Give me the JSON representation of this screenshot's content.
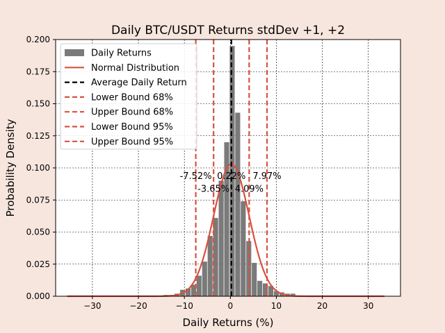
{
  "chart_data": {
    "type": "bar",
    "title": "Daily BTC/USDT Returns stdDev +1, +2",
    "xlabel": "Daily Returns (%)",
    "ylabel": "Probability Density",
    "xlim": [
      -38,
      37
    ],
    "ylim": [
      0,
      0.2
    ],
    "x_ticks": [
      -30,
      -20,
      -10,
      0,
      10,
      20,
      30
    ],
    "x_tick_labels": [
      "−30",
      "−20",
      "−10",
      "0",
      "10",
      "20",
      "30"
    ],
    "y_ticks": [
      0,
      0.025,
      0.05,
      0.075,
      0.1,
      0.125,
      0.15,
      0.175,
      0.2
    ],
    "y_tick_labels": [
      "0.000",
      "0.025",
      "0.050",
      "0.075",
      "0.100",
      "0.125",
      "0.150",
      "0.175",
      "0.200"
    ],
    "grid": true,
    "legend_position": "top-left",
    "colors": {
      "bars": "#7a7a7a",
      "normal": "#d9503f",
      "mean": "#000000",
      "bounds": "#d9503f",
      "background": "#f7e6de"
    },
    "histogram": {
      "name": "Daily Returns",
      "bin_width": 1.2,
      "bins": [
        {
          "x": -14.0,
          "y": 0.001
        },
        {
          "x": -12.8,
          "y": 0.001
        },
        {
          "x": -11.6,
          "y": 0.002
        },
        {
          "x": -10.4,
          "y": 0.005
        },
        {
          "x": -9.2,
          "y": 0.006
        },
        {
          "x": -8.0,
          "y": 0.009
        },
        {
          "x": -6.8,
          "y": 0.016
        },
        {
          "x": -5.6,
          "y": 0.027
        },
        {
          "x": -4.4,
          "y": 0.047
        },
        {
          "x": -3.2,
          "y": 0.061
        },
        {
          "x": -2.0,
          "y": 0.09
        },
        {
          "x": -0.8,
          "y": 0.12
        },
        {
          "x": 0.4,
          "y": 0.195
        },
        {
          "x": 1.6,
          "y": 0.143
        },
        {
          "x": 2.8,
          "y": 0.074
        },
        {
          "x": 4.0,
          "y": 0.043
        },
        {
          "x": 5.2,
          "y": 0.026
        },
        {
          "x": 6.4,
          "y": 0.012
        },
        {
          "x": 7.6,
          "y": 0.01
        },
        {
          "x": 8.8,
          "y": 0.008
        },
        {
          "x": 10.0,
          "y": 0.004
        },
        {
          "x": 11.2,
          "y": 0.003
        },
        {
          "x": 12.4,
          "y": 0.002
        },
        {
          "x": 13.6,
          "y": 0.002
        }
      ]
    },
    "normal": {
      "name": "Normal Distribution",
      "mean": 0.22,
      "std": 3.87,
      "x_range": [
        -35.5,
        33.5
      ]
    },
    "vlines": [
      {
        "name": "Average Daily Return",
        "x": 0.22,
        "style": "dashed",
        "color": "#000000"
      },
      {
        "name": "Lower Bound 68%",
        "x": -3.65,
        "style": "dashed",
        "color": "#d9503f"
      },
      {
        "name": "Upper Bound 68%",
        "x": 4.09,
        "style": "dashed",
        "color": "#d9503f"
      },
      {
        "name": "Lower Bound 95%",
        "x": -7.52,
        "style": "dashed",
        "color": "#d9503f"
      },
      {
        "name": "Upper Bound 95%",
        "x": 7.97,
        "style": "dashed",
        "color": "#d9503f"
      }
    ],
    "annotations": [
      {
        "text": "-7.52%",
        "x": -7.52,
        "y": 0.094
      },
      {
        "text": "0.22%",
        "x": 0.22,
        "y": 0.094
      },
      {
        "text": "7.97%",
        "x": 7.97,
        "y": 0.094
      },
      {
        "text": "-3.65%",
        "x": -3.65,
        "y": 0.084
      },
      {
        "text": "4.09%",
        "x": 4.09,
        "y": 0.084
      }
    ],
    "legend": [
      {
        "label": "Daily Returns",
        "kind": "patch",
        "color": "#7a7a7a"
      },
      {
        "label": "Normal Distribution",
        "kind": "line",
        "color": "#d9503f"
      },
      {
        "label": "Average Daily Return",
        "kind": "dashed",
        "color": "#000000"
      },
      {
        "label": "Lower Bound 68%",
        "kind": "dashed",
        "color": "#d9503f"
      },
      {
        "label": "Upper Bound 68%",
        "kind": "dashed",
        "color": "#d9503f"
      },
      {
        "label": "Lower Bound 95%",
        "kind": "dashed",
        "color": "#d9503f"
      },
      {
        "label": "Upper Bound 95%",
        "kind": "dashed",
        "color": "#d9503f"
      }
    ]
  }
}
